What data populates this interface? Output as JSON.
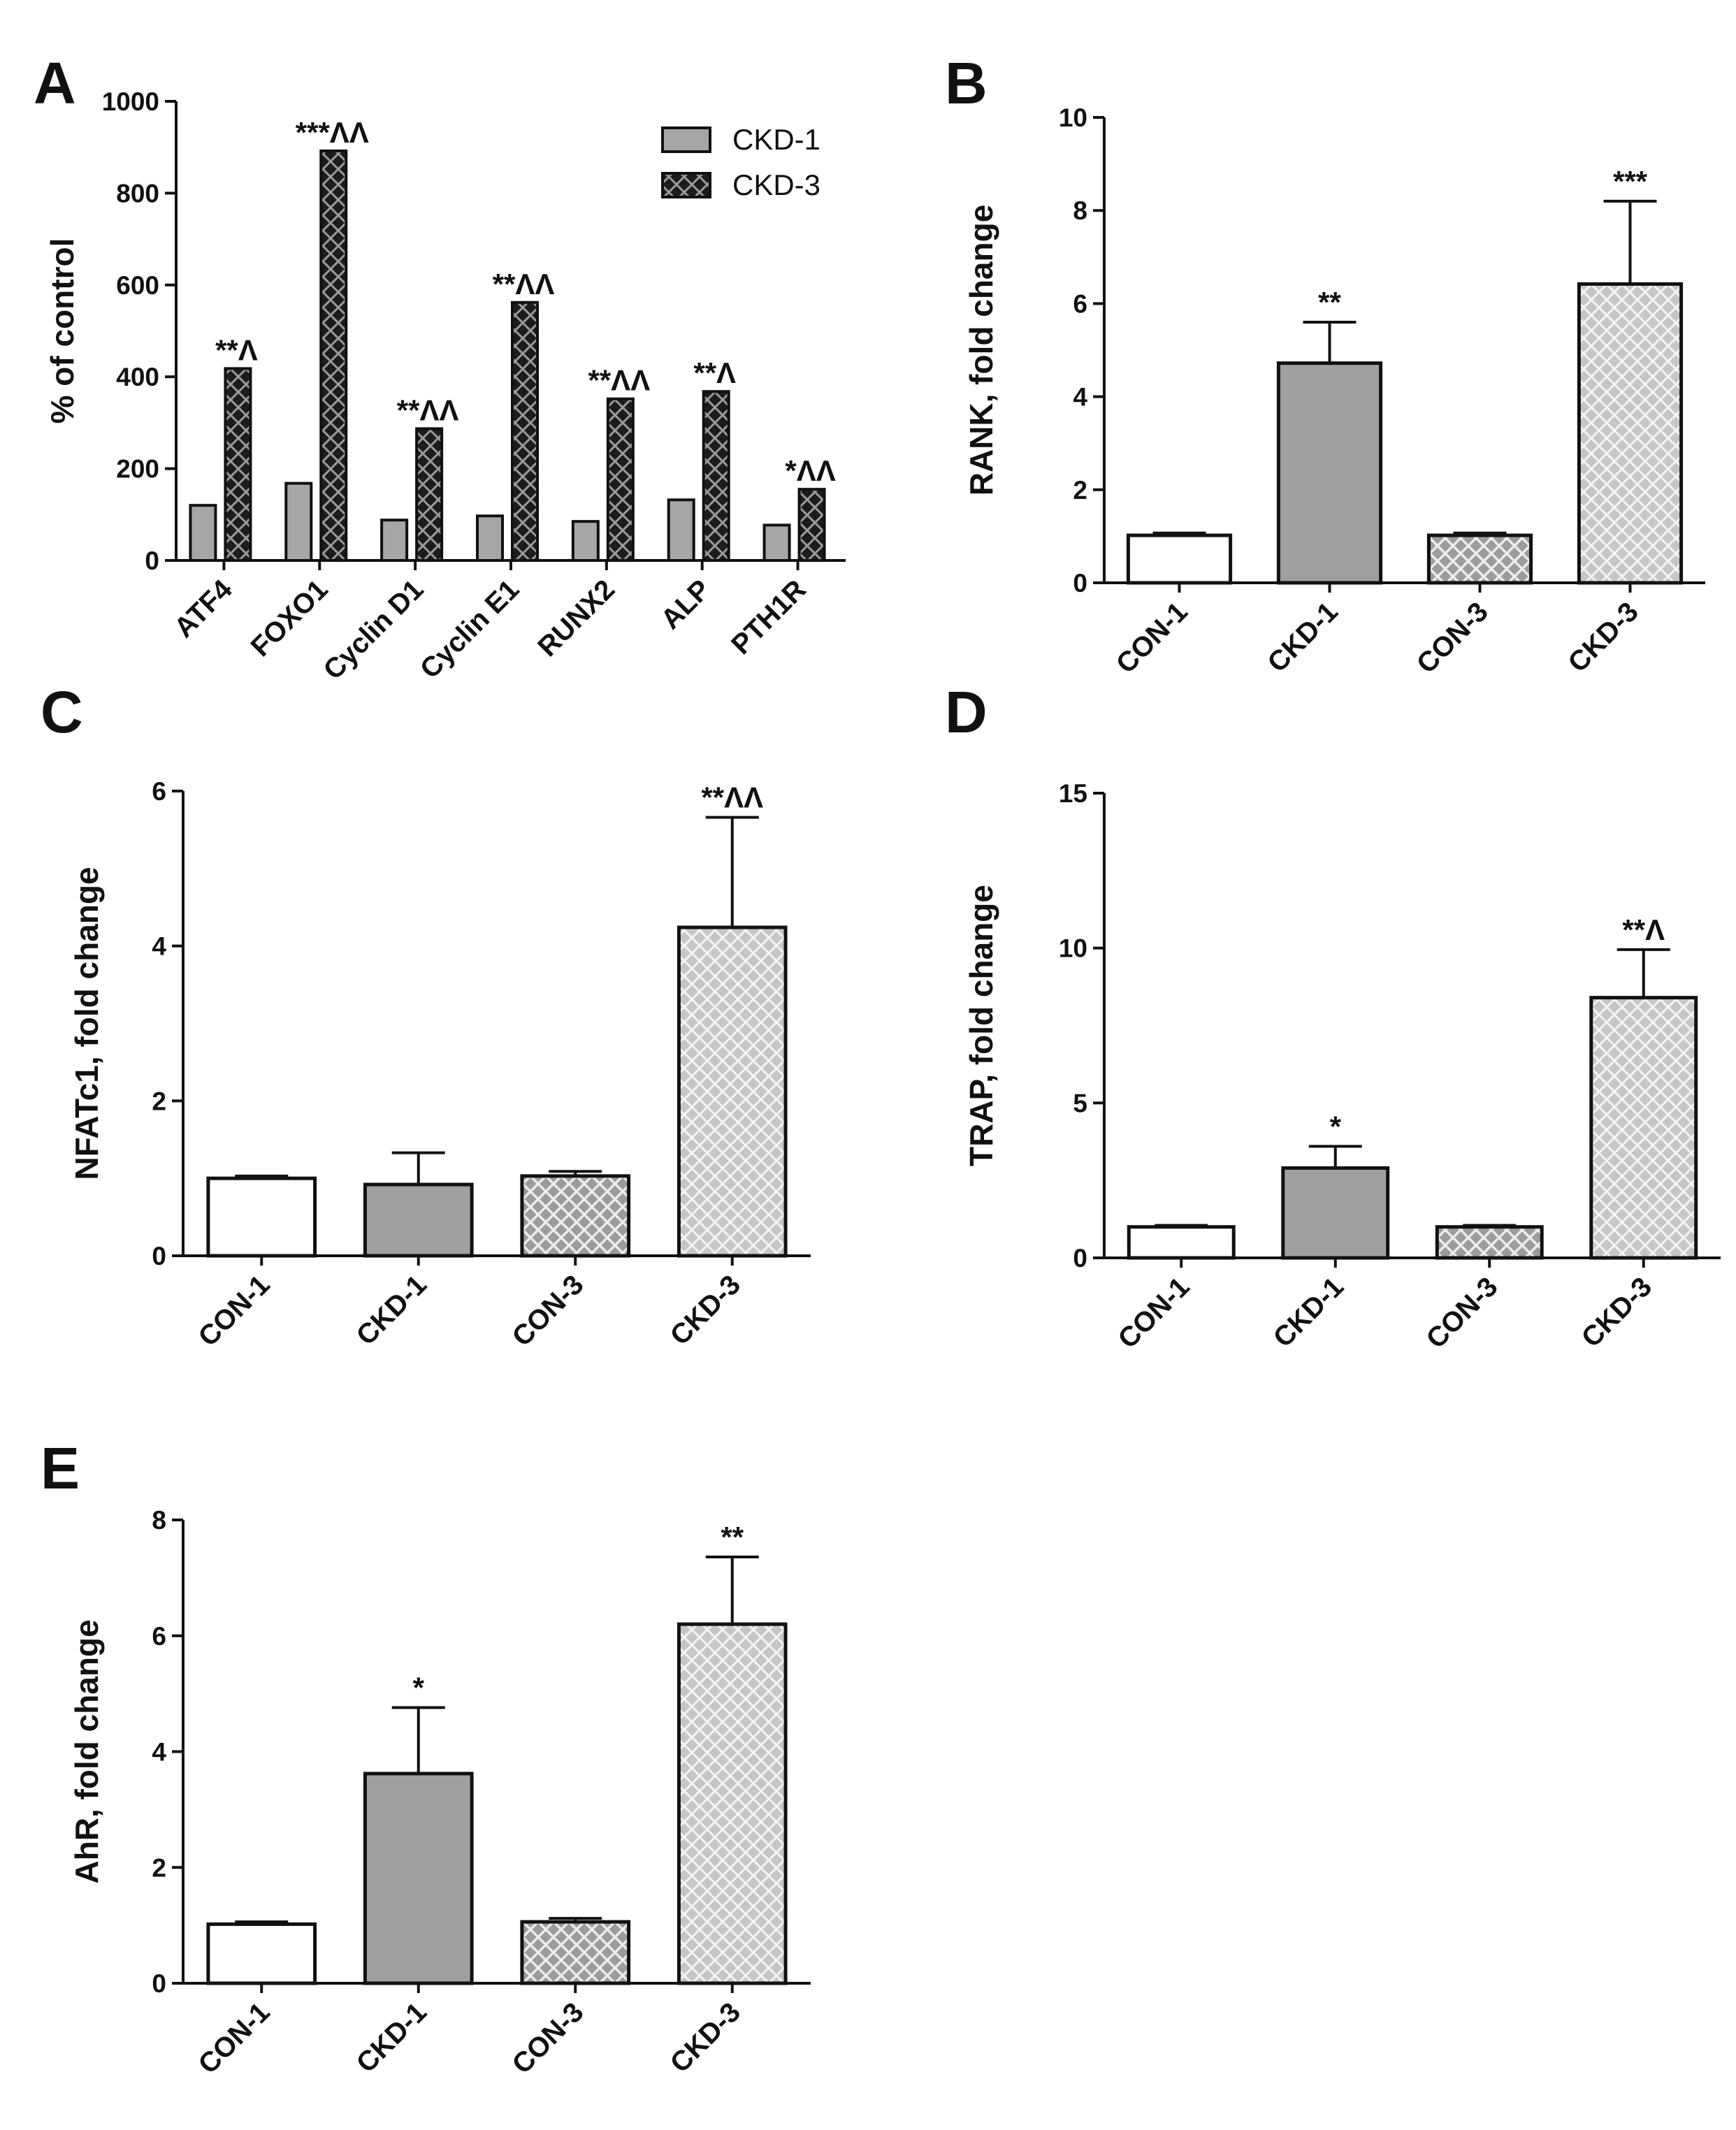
{
  "figure": {
    "background": "#ffffff",
    "colors": {
      "ckd1_fill": "#a6a6a6",
      "ckd3_dark_fill": "#222222",
      "con1_fill": "#ffffff",
      "ckd1_bar": "#a0a0a0",
      "con3_hatch": "#a9a9a9",
      "ckd3_hatch": "#cfcfcf",
      "stroke": "#111111"
    }
  },
  "chart_data": [
    {
      "id": "A",
      "panel_label": "A",
      "type": "bar",
      "title": "",
      "xlabel": "",
      "ylabel": "% of control",
      "ylim": [
        0,
        1000
      ],
      "yticks": [
        "0",
        "200",
        "400",
        "600",
        "800",
        "1000"
      ],
      "categories": [
        "ATF4",
        "FOXO1",
        "Cyclin D1",
        "Cyclin E1",
        "RUNX2",
        "ALP",
        "PTH1R"
      ],
      "legend": [
        "CKD-1",
        "CKD-3"
      ],
      "legend_position": "top-right",
      "series": [
        {
          "name": "CKD-1",
          "values": [
            120,
            168,
            88,
            97,
            85,
            132,
            77
          ]
        },
        {
          "name": "CKD-3",
          "values": [
            418,
            892,
            287,
            562,
            352,
            368,
            155
          ]
        }
      ],
      "annotations": [
        "**^",
        "***^^",
        "**^^",
        "**^^",
        "**^^",
        "**^",
        "*^^"
      ]
    },
    {
      "id": "B",
      "panel_label": "B",
      "type": "bar",
      "title": "",
      "xlabel": "",
      "ylabel": "RANK, fold change",
      "ylim": [
        0,
        10
      ],
      "yticks": [
        "0",
        "2",
        "4",
        "6",
        "8",
        "10"
      ],
      "categories": [
        "CON-1",
        "CKD-1",
        "CON-3",
        "CKD-3"
      ],
      "values": [
        1.02,
        4.72,
        1.02,
        6.42
      ],
      "errors": [
        0.05,
        0.88,
        0.05,
        1.78
      ],
      "annotations": [
        "",
        "**",
        "",
        "***"
      ]
    },
    {
      "id": "C",
      "panel_label": "C",
      "type": "bar",
      "title": "",
      "xlabel": "",
      "ylabel": "NFATc1, fold change",
      "ylim": [
        0,
        6
      ],
      "yticks": [
        "0",
        "2",
        "4",
        "6"
      ],
      "categories": [
        "CON-1",
        "CKD-1",
        "CON-3",
        "CKD-3"
      ],
      "values": [
        1.0,
        0.92,
        1.03,
        4.24
      ],
      "errors": [
        0.03,
        0.41,
        0.06,
        1.42
      ],
      "annotations": [
        "",
        "",
        "",
        "**^^"
      ]
    },
    {
      "id": "D",
      "panel_label": "D",
      "type": "bar",
      "title": "",
      "xlabel": "",
      "ylabel": "TRAP, fold change",
      "ylim": [
        0,
        15
      ],
      "yticks": [
        "0",
        "5",
        "10",
        "15"
      ],
      "categories": [
        "CON-1",
        "CKD-1",
        "CON-3",
        "CKD-3"
      ],
      "values": [
        1.0,
        2.9,
        1.0,
        8.4
      ],
      "errors": [
        0.05,
        0.7,
        0.05,
        1.55
      ],
      "annotations": [
        "",
        "*",
        "",
        "**^"
      ]
    },
    {
      "id": "E",
      "panel_label": "E",
      "type": "bar",
      "title": "",
      "xlabel": "",
      "ylabel": "AhR, fold change",
      "ylim": [
        0,
        8
      ],
      "yticks": [
        "0",
        "2",
        "4",
        "6",
        "8"
      ],
      "categories": [
        "CON-1",
        "CKD-1",
        "CON-3",
        "CKD-3"
      ],
      "values": [
        1.02,
        3.62,
        1.06,
        6.2
      ],
      "errors": [
        0.04,
        1.14,
        0.06,
        1.16
      ],
      "annotations": [
        "",
        "*",
        "",
        "**"
      ]
    }
  ]
}
